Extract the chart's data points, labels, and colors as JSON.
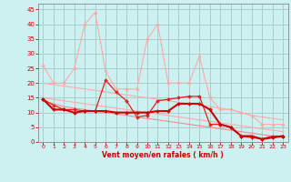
{
  "bg_color": "#cdf0f0",
  "grid_color": "#aacccc",
  "xlabel": "Vent moyen/en rafales ( km/h )",
  "xlabel_color": "#cc0000",
  "tick_color": "#cc0000",
  "ylim": [
    0,
    47
  ],
  "xlim": [
    -0.5,
    23.5
  ],
  "yticks": [
    0,
    5,
    10,
    15,
    20,
    25,
    30,
    35,
    40,
    45
  ],
  "xticks": [
    0,
    1,
    2,
    3,
    4,
    5,
    6,
    7,
    8,
    9,
    10,
    11,
    12,
    13,
    14,
    15,
    16,
    17,
    18,
    19,
    20,
    21,
    22,
    23
  ],
  "series": [
    {
      "x": [
        0,
        1,
        2,
        3,
        4,
        5,
        6,
        7,
        8,
        9,
        10,
        11,
        12,
        13,
        14,
        15,
        16,
        17,
        18,
        19,
        20,
        21,
        22,
        23
      ],
      "y": [
        26,
        20,
        20,
        25,
        40,
        44,
        24,
        18,
        18,
        18,
        35,
        40,
        20,
        20,
        20,
        29,
        15,
        11,
        11,
        10,
        9,
        6,
        6,
        6
      ],
      "color": "#ffaaaa",
      "lw": 0.8,
      "marker": "o",
      "markersize": 2.0,
      "alpha": 1.0,
      "zorder": 2
    },
    {
      "x": [
        0,
        1,
        2,
        3,
        4,
        5,
        6,
        7,
        8,
        9,
        10,
        11,
        12,
        13,
        14,
        15,
        16,
        17,
        18,
        19,
        20,
        21,
        22,
        23
      ],
      "y": [
        20,
        19.5,
        19,
        18.5,
        18,
        17.5,
        17,
        16.5,
        16,
        15.5,
        15,
        14.5,
        14,
        13.5,
        13,
        12.5,
        12,
        11.5,
        11,
        10,
        9,
        8.5,
        8,
        7.5
      ],
      "color": "#ffaaaa",
      "lw": 0.8,
      "marker": null,
      "markersize": 0,
      "alpha": 1.0,
      "zorder": 2
    },
    {
      "x": [
        0,
        1,
        2,
        3,
        4,
        5,
        6,
        7,
        8,
        9,
        10,
        11,
        12,
        13,
        14,
        15,
        16,
        17,
        18,
        19,
        20,
        21,
        22,
        23
      ],
      "y": [
        15,
        14.5,
        14,
        13.5,
        13,
        12.5,
        12,
        11.5,
        11,
        10.5,
        10,
        9.5,
        9,
        8.5,
        8,
        7.5,
        7,
        6.5,
        6,
        5.5,
        5,
        4.5,
        4,
        3.5
      ],
      "color": "#ffaaaa",
      "lw": 0.8,
      "marker": null,
      "markersize": 0,
      "alpha": 1.0,
      "zorder": 2
    },
    {
      "x": [
        0,
        1,
        2,
        3,
        4,
        5,
        6,
        7,
        8,
        9,
        10,
        11,
        12,
        13,
        14,
        15,
        16,
        17,
        18,
        19,
        20,
        21,
        22,
        23
      ],
      "y": [
        14,
        13,
        12,
        11.5,
        11,
        10.5,
        10,
        9.5,
        9,
        8.5,
        8,
        7.5,
        7,
        6.5,
        6,
        5.5,
        5,
        4.5,
        4,
        3.5,
        3,
        2.5,
        2,
        1.5
      ],
      "color": "#ff8888",
      "lw": 0.8,
      "marker": null,
      "markersize": 0,
      "alpha": 1.0,
      "zorder": 2
    },
    {
      "x": [
        0,
        1,
        2,
        3,
        4,
        5,
        6,
        7,
        8,
        9,
        10,
        11,
        12,
        13,
        14,
        15,
        16,
        17,
        18,
        19,
        20,
        21,
        22,
        23
      ],
      "y": [
        14.5,
        12.5,
        11,
        11,
        10.5,
        10.5,
        21,
        17,
        14,
        8.5,
        9,
        14,
        14.5,
        15,
        15.5,
        15.5,
        6,
        6,
        5,
        2,
        1.5,
        1,
        2,
        2
      ],
      "color": "#dd2222",
      "lw": 0.9,
      "marker": "D",
      "markersize": 1.8,
      "alpha": 1.0,
      "zorder": 3
    },
    {
      "x": [
        0,
        1,
        2,
        3,
        4,
        5,
        6,
        7,
        8,
        9,
        10,
        11,
        12,
        13,
        14,
        15,
        16,
        17,
        18,
        19,
        20,
        21,
        22,
        23
      ],
      "y": [
        14.5,
        11,
        11,
        10,
        10.5,
        10.5,
        10.5,
        10,
        10,
        10,
        10,
        10.5,
        10.5,
        13,
        13,
        13,
        11,
        6,
        5,
        2,
        2,
        1,
        1.5,
        2
      ],
      "color": "#cc0000",
      "lw": 1.5,
      "marker": "D",
      "markersize": 1.8,
      "alpha": 1.0,
      "zorder": 4
    }
  ]
}
